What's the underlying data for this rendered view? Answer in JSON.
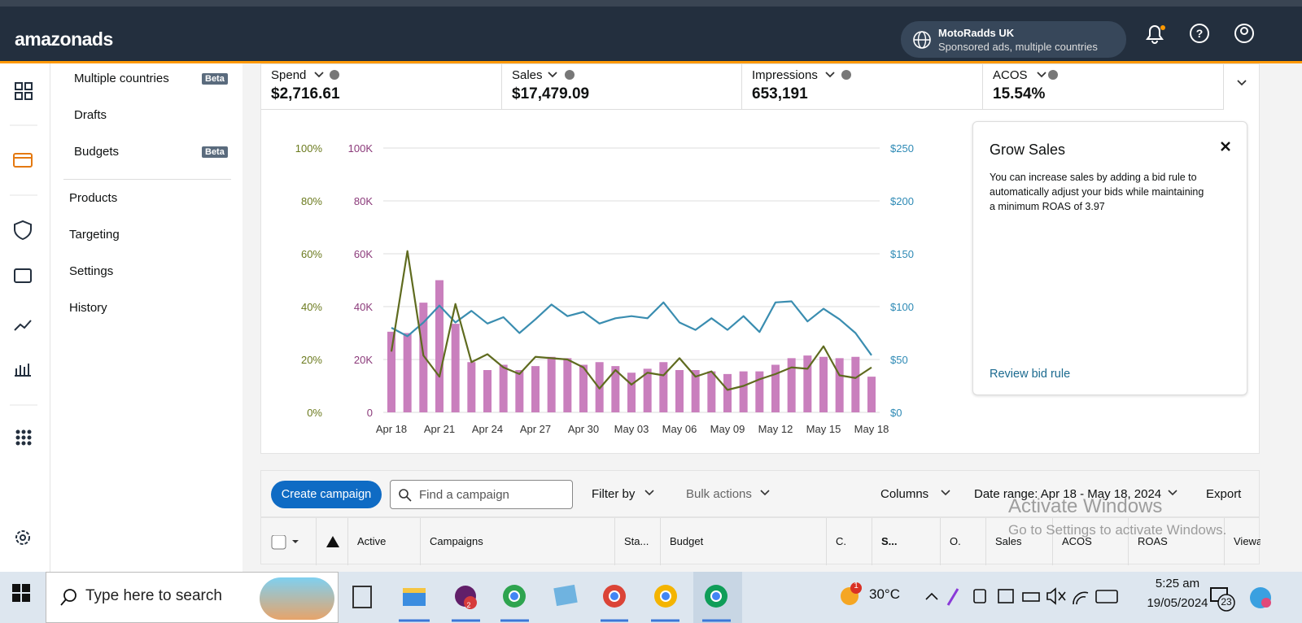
{
  "header": {
    "logo": "amazonads",
    "account_name": "MotoRadds UK",
    "account_sub": "Sponsored ads, multiple countries"
  },
  "nav": [
    {
      "label": "Multiple countries",
      "badge": "Beta"
    },
    {
      "label": "Drafts"
    },
    {
      "label": "Budgets",
      "badge": "Beta"
    },
    {
      "label": "Products"
    },
    {
      "label": "Targeting"
    },
    {
      "label": "Settings"
    },
    {
      "label": "History"
    }
  ],
  "metrics": [
    {
      "label": "Spend",
      "value": "$2,716.61"
    },
    {
      "label": "Sales",
      "value": "$17,479.09"
    },
    {
      "label": "Impressions",
      "value": "653,191"
    },
    {
      "label": "ACOS",
      "value": "15.54%"
    }
  ],
  "card": {
    "title": "Grow Sales",
    "text": "You can increase sales by adding a bid rule to automatically adjust your bids while maintaining a minimum ROAS of 3.97",
    "link": "Review bid rule"
  },
  "toolbar": {
    "create": "Create campaign",
    "search": "Find a campaign",
    "filter": "Filter by",
    "bulk": "Bulk actions",
    "columns": "Columns",
    "date_range": "Date range: Apr 18 - May 18, 2024",
    "export": "Export"
  },
  "table": {
    "headers": [
      "Active",
      "Campaigns",
      "Sta...",
      "Budget",
      "C.",
      "S...",
      "O.",
      "Sales",
      "ACOS",
      "ROAS",
      "Viewa"
    ]
  },
  "watermark": {
    "title": "Activate Windows",
    "text": "Go to Settings to activate Windows."
  },
  "taskbar": {
    "search": "Type here to search",
    "weather": "30°C",
    "weather_badge": "1",
    "slack_badge": "2",
    "time": "5:25 am",
    "date": "19/05/2024",
    "notifications": "23"
  },
  "chart_data": {
    "type": "bar_line",
    "categories": [
      "Apr 18",
      null,
      null,
      "Apr 21",
      null,
      null,
      "Apr 24",
      null,
      null,
      "Apr 27",
      null,
      null,
      "Apr 30",
      null,
      null,
      "May 03",
      null,
      null,
      "May 06",
      null,
      null,
      "May 09",
      null,
      null,
      "May 12",
      null,
      null,
      "May 15",
      null,
      null,
      "May 18"
    ],
    "series": [
      {
        "type": "bar",
        "axis": "y",
        "color": "#c97fbd",
        "values": [
          30500,
          30000,
          41500,
          50000,
          33500,
          19000,
          16000,
          18000,
          16000,
          17500,
          21000,
          20500,
          18000,
          19000,
          17500,
          15000,
          16500,
          19000,
          16000,
          16000,
          15500,
          14500,
          15500,
          15500,
          18000,
          20500,
          21500,
          21000,
          20500,
          21000,
          13500
        ]
      },
      {
        "type": "line",
        "axis": "y2",
        "color": "#3a8db0",
        "values": [
          80,
          72,
          85,
          101,
          85,
          96,
          84,
          90,
          75,
          88,
          102,
          91,
          95,
          84,
          89,
          91,
          89,
          104,
          85,
          78,
          89,
          78,
          91,
          76,
          104,
          105,
          86,
          98,
          88,
          75,
          54
        ]
      },
      {
        "type": "line",
        "axis": "y3",
        "color": "#5f6b1f",
        "values": [
          23,
          61,
          21.5,
          13.5,
          41,
          19,
          22,
          17,
          14.5,
          21,
          20.5,
          20,
          17,
          9,
          16,
          10.5,
          15,
          14,
          20.5,
          13.5,
          15.5,
          8.5,
          10,
          12.5,
          14.5,
          17,
          16.5,
          25,
          14,
          13,
          17
        ]
      }
    ],
    "ylim": [
      0,
      100000
    ],
    "yticks": [
      0,
      {
        "value": 20000,
        "label": "20K"
      },
      {
        "value": 40000,
        "label": "40K"
      },
      {
        "value": 60000,
        "label": "60K"
      },
      {
        "value": 80000,
        "label": "80K"
      },
      {
        "value": 100000,
        "label": "100K"
      }
    ],
    "y2lim": [
      0,
      250
    ],
    "y2ticks": [
      {
        "value": 0,
        "label": "$0"
      },
      {
        "value": 50,
        "label": "$50"
      },
      {
        "value": 100,
        "label": "$100"
      },
      {
        "value": 150,
        "label": "$150"
      },
      {
        "value": 200,
        "label": "$200"
      },
      {
        "value": 250,
        "label": "$250"
      }
    ],
    "y3lim": [
      0,
      100
    ],
    "y3ticks": [
      {
        "value": 0,
        "label": "0%"
      },
      {
        "value": 20,
        "label": "20%"
      },
      {
        "value": 40,
        "label": "40%"
      },
      {
        "value": 60,
        "label": "60%"
      },
      {
        "value": 80,
        "label": "80%"
      },
      {
        "value": 100,
        "label": "100%"
      }
    ],
    "tick_colors": {
      "y": "#8b3a7a",
      "y2": "#2e8ab5",
      "y3": "#6b7a1e"
    },
    "grid": true
  }
}
